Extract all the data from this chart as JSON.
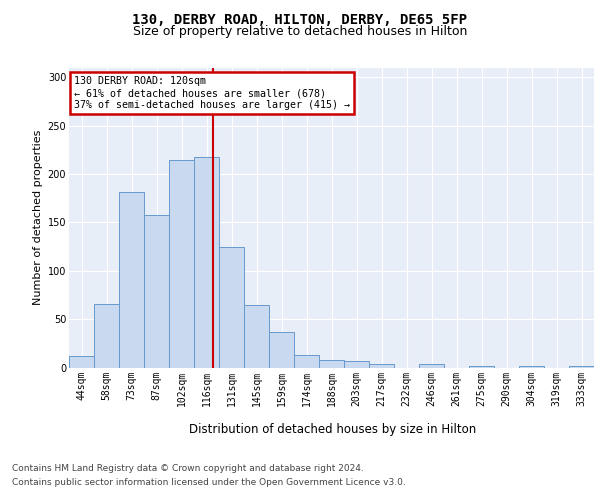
{
  "title1": "130, DERBY ROAD, HILTON, DERBY, DE65 5FP",
  "title2": "Size of property relative to detached houses in Hilton",
  "xlabel": "Distribution of detached houses by size in Hilton",
  "ylabel": "Number of detached properties",
  "categories": [
    "44sqm",
    "58sqm",
    "73sqm",
    "87sqm",
    "102sqm",
    "116sqm",
    "131sqm",
    "145sqm",
    "159sqm",
    "174sqm",
    "188sqm",
    "203sqm",
    "217sqm",
    "232sqm",
    "246sqm",
    "261sqm",
    "275sqm",
    "290sqm",
    "304sqm",
    "319sqm",
    "333sqm"
  ],
  "values": [
    12,
    66,
    181,
    158,
    214,
    218,
    125,
    65,
    37,
    13,
    8,
    7,
    4,
    0,
    4,
    0,
    2,
    0,
    2,
    0,
    2
  ],
  "bar_color": "#c9d9f0",
  "bar_edge_color": "#6699cc",
  "vline_x": 5.27,
  "vline_color": "#cc0000",
  "annotation_text": "130 DERBY ROAD: 120sqm\n← 61% of detached houses are smaller (678)\n37% of semi-detached houses are larger (415) →",
  "annotation_box_color": "#ffffff",
  "annotation_box_edge": "#cc0000",
  "footer1": "Contains HM Land Registry data © Crown copyright and database right 2024.",
  "footer2": "Contains public sector information licensed under the Open Government Licence v3.0.",
  "ylim": [
    0,
    310
  ],
  "bg_color": "#e8eef8",
  "grid_color": "#ffffff",
  "title1_fontsize": 10,
  "title2_fontsize": 9,
  "tick_fontsize": 7,
  "ylabel_fontsize": 8,
  "xlabel_fontsize": 8.5,
  "footer_fontsize": 6.5
}
